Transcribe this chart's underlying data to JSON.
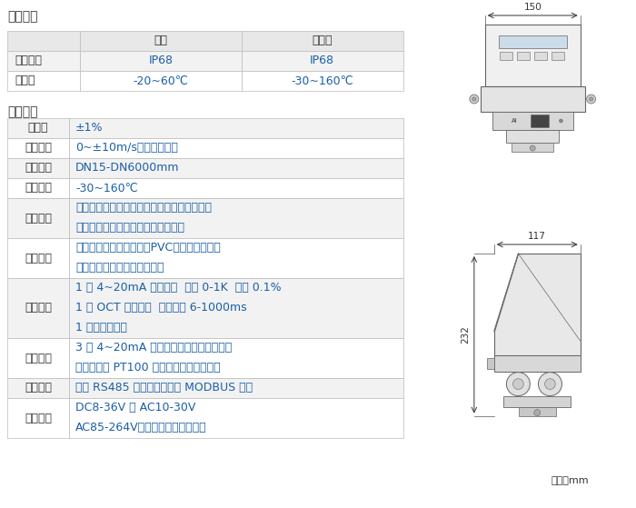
{
  "title1": "工作环境",
  "title2": "基本参数",
  "env_header": [
    "",
    "主机",
    "传感器"
  ],
  "env_rows": [
    [
      "防护等级",
      "IP68",
      "IP68"
    ],
    [
      "温　度",
      "-20~60℃",
      "-30~160℃"
    ]
  ],
  "params_rows": [
    [
      "精　度",
      "±1%",
      1
    ],
    [
      "流速范围",
      "0~±10m/s，正反向测量",
      1
    ],
    [
      "管道口径",
      "DN15-DN6000mm",
      1
    ],
    [
      "流体温度",
      "-30~160℃",
      1
    ],
    [
      "流体种类",
      "水、海水、污水、酸碱液、酒精、啤酒、各类\n油类等能传导超声波的单一均匀液体",
      2
    ],
    [
      "管道材质",
      "钢、不锈钢、铸铁、铜、PVC、铝、玻璃钢等\n一切质密的管道，允许有衬里",
      2
    ],
    [
      "信号输出",
      "1 路 4~20mA 电流输出  阻抗 0-1K  精度 0.1%\n1 路 OCT 脉冲输出  脉冲宽度 6-1000ms\n1 路继电器输出",
      3
    ],
    [
      "信号输入",
      "3 路 4~20mA 电流输入，可做数据采集器\n连接三线制 PT100 铂电阻，实现热量测量",
      2
    ],
    [
      "通信接口",
      "隔离 RS485 串行接口，支持 MODBUS 协议",
      1
    ],
    [
      "供电方式",
      "DC8-36V 或 AC10-30V\nAC85-264V，配接防水电源适配器",
      2
    ]
  ],
  "bg_color": "#ffffff",
  "table_header_bg": "#e8e8e8",
  "row_bg_odd": "#f2f2f2",
  "row_bg_even": "#ffffff",
  "text_dark": "#333333",
  "text_blue": "#1a5fa8",
  "border_color": "#bbbbbb",
  "dim_150": "150",
  "dim_117": "117",
  "dim_232": "232",
  "unit_label": "单位：mm"
}
